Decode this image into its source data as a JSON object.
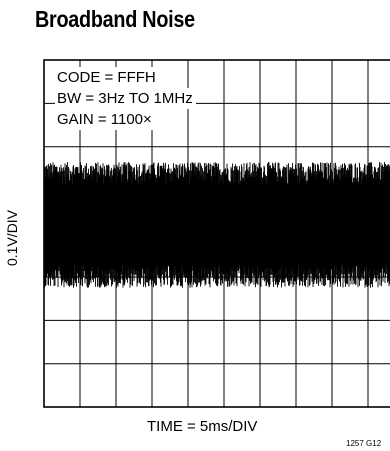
{
  "chart_data": {
    "type": "line",
    "title": "Broadband Noise",
    "xlabel": "TIME = 5ms/DIV",
    "ylabel": "0.1V/DIV",
    "annotations": [
      "CODE = FFFH",
      "BW = 3Hz TO 1MHz",
      "GAIN = 1100×"
    ],
    "x_divisions": 10,
    "y_divisions": 8,
    "x_per_div_ms": 5,
    "y_per_div_v": 0.1,
    "grid": true,
    "series": [
      {
        "noise_center_div": 3.8,
        "noise_peak_to_peak_div": 2.9,
        "color": "#000000"
      }
    ],
    "figure_id": "1257 G12"
  }
}
